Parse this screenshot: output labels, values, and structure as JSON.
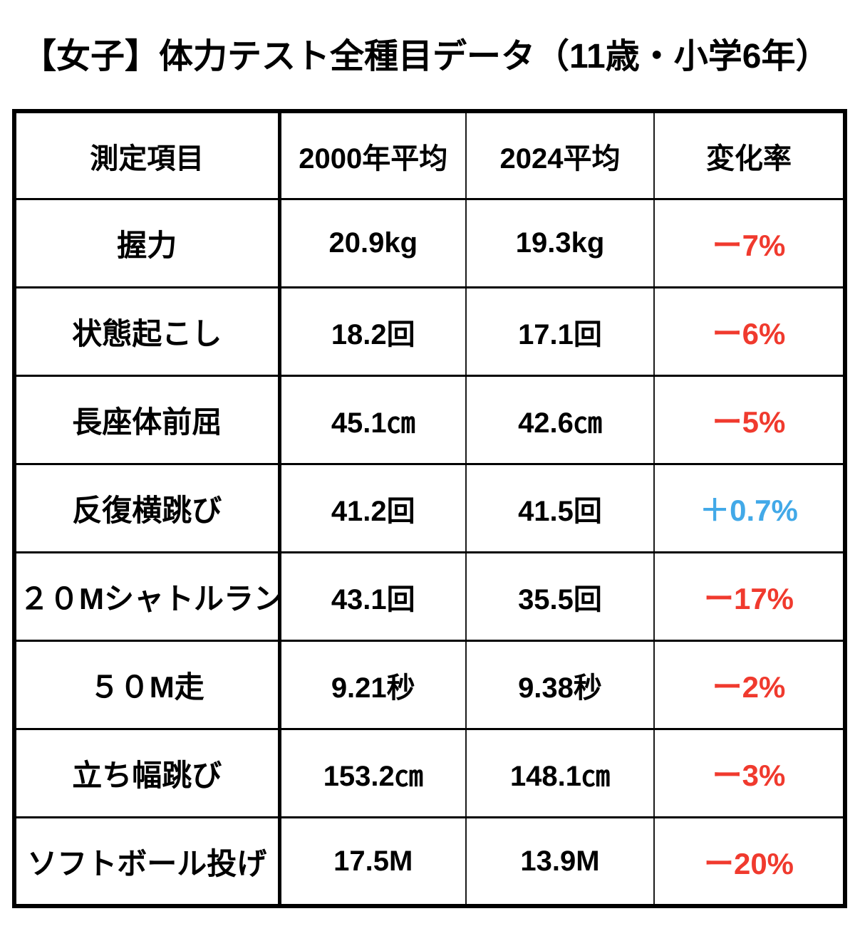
{
  "title": "【女子】体力テスト全種目データ（11歳・小学6年）",
  "colors": {
    "negative": "#F03A2E",
    "positive": "#42A9E8",
    "text": "#000000",
    "border": "#000000",
    "background": "#FFFFFF"
  },
  "table": {
    "headers": [
      "測定項目",
      "2000年平均",
      "2024平均",
      "変化率"
    ],
    "rows": [
      {
        "item": "握力",
        "y2000": "20.9kg",
        "y2024": "19.3kg",
        "change": "ー7%",
        "direction": "negative"
      },
      {
        "item": "状態起こし",
        "y2000": "18.2回",
        "y2024": "17.1回",
        "change": "ー6%",
        "direction": "negative"
      },
      {
        "item": "長座体前屈",
        "y2000": "45.1㎝",
        "y2024": "42.6㎝",
        "change": "ー5%",
        "direction": "negative"
      },
      {
        "item": "反復横跳び",
        "y2000": "41.2回",
        "y2024": "41.5回",
        "change": "＋0.7%",
        "direction": "positive"
      },
      {
        "item": "２０Mシャトルラン",
        "y2000": "43.1回",
        "y2024": "35.5回",
        "change": "ー17%",
        "direction": "negative"
      },
      {
        "item": "５０M走",
        "y2000": "9.21秒",
        "y2024": "9.38秒",
        "change": "ー2%",
        "direction": "negative"
      },
      {
        "item": "立ち幅跳び",
        "y2000": "153.2㎝",
        "y2024": "148.1㎝",
        "change": "ー3%",
        "direction": "negative"
      },
      {
        "item": "ソフトボール投げ",
        "y2000": "17.5M",
        "y2024": "13.9M",
        "change": "ー20%",
        "direction": "negative"
      }
    ]
  },
  "chart_data": {
    "type": "table",
    "title": "【女子】体力テスト全種目データ（11歳・小学6年）",
    "columns": [
      "測定項目",
      "2000年平均",
      "2024平均",
      "変化率"
    ],
    "rows": [
      [
        "握力",
        "20.9kg",
        "19.3kg",
        "ー7%"
      ],
      [
        "状態起こし",
        "18.2回",
        "17.1回",
        "ー6%"
      ],
      [
        "長座体前屈",
        "45.1㎝",
        "42.6㎝",
        "ー5%"
      ],
      [
        "反復横跳び",
        "41.2回",
        "41.5回",
        "＋0.7%"
      ],
      [
        "２０Mシャトルラン",
        "43.1回",
        "35.5回",
        "ー17%"
      ],
      [
        "５０M走",
        "9.21秒",
        "9.38秒",
        "ー2%"
      ],
      [
        "立ち幅跳び",
        "153.2㎝",
        "148.1㎝",
        "ー3%"
      ],
      [
        "ソフトボール投げ",
        "17.5M",
        "13.9M",
        "ー20%"
      ]
    ],
    "notes": {
      "change_values_numeric_percent": [
        -7,
        -6,
        -5,
        0.7,
        -17,
        -2,
        -3,
        -20
      ],
      "negative_color": "#F03A2E",
      "positive_color": "#42A9E8"
    }
  }
}
